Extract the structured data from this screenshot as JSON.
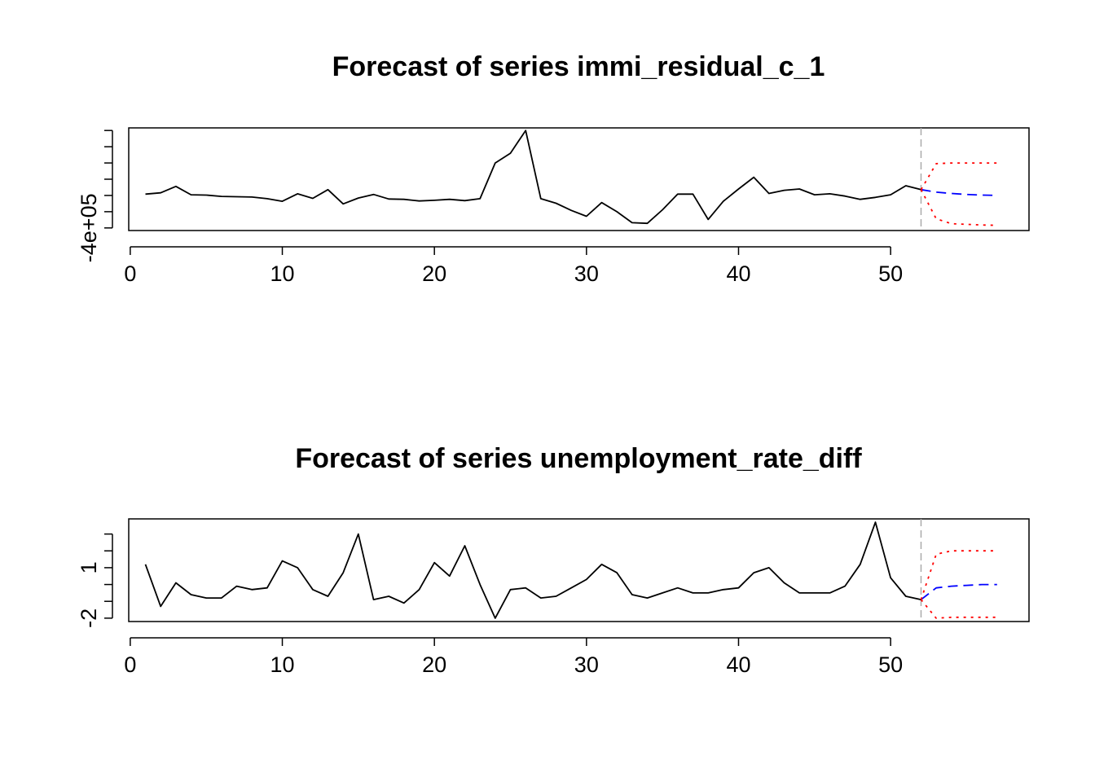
{
  "chart_data": [
    {
      "type": "line",
      "title": "Forecast of series immi_residual_c_1",
      "xlabel": "",
      "ylabel": "",
      "xlim": [
        -0.1,
        59.1
      ],
      "ylim": [
        -440000,
        1140000
      ],
      "x_ticks": [
        0,
        10,
        20,
        30,
        40,
        50
      ],
      "x_tick_labels": [
        "0",
        "10",
        "20",
        "30",
        "40",
        "50"
      ],
      "y_ticks": [
        -400000,
        -150000,
        100000,
        350000,
        600000,
        850000,
        1100000
      ],
      "y_tick_labels": [
        "-4e+05",
        "",
        "",
        "",
        "",
        "",
        ""
      ],
      "forecast_origin": 52,
      "series": [
        {
          "role": "observed",
          "color": "#000000",
          "style": "solid",
          "x": [
            1,
            2,
            3,
            4,
            5,
            6,
            7,
            8,
            9,
            10,
            11,
            12,
            13,
            14,
            15,
            16,
            17,
            18,
            19,
            20,
            21,
            22,
            23,
            24,
            25,
            26,
            27,
            28,
            29,
            30,
            31,
            32,
            33,
            34,
            35,
            36,
            37,
            38,
            39,
            40,
            41,
            42,
            43,
            44,
            45,
            46,
            47,
            48,
            49,
            50,
            51,
            52
          ],
          "values": [
            120000,
            140000,
            240000,
            110000,
            105000,
            85000,
            80000,
            75000,
            50000,
            10000,
            125000,
            55000,
            190000,
            -30000,
            60000,
            115000,
            45000,
            40000,
            15000,
            25000,
            40000,
            20000,
            50000,
            600000,
            750000,
            1100000,
            50000,
            -20000,
            -130000,
            -220000,
            -10000,
            -150000,
            -320000,
            -330000,
            -120000,
            120000,
            120000,
            -270000,
            10000,
            200000,
            380000,
            130000,
            180000,
            200000,
            110000,
            125000,
            90000,
            40000,
            70000,
            110000,
            250000,
            190000
          ]
        },
        {
          "role": "forecast",
          "color": "#0000ff",
          "style": "dashed",
          "x": [
            52,
            53,
            54,
            55,
            56,
            57
          ],
          "values": [
            190000,
            150000,
            130000,
            115000,
            105000,
            100000
          ]
        },
        {
          "role": "upper-bound",
          "color": "#ff0000",
          "style": "dotted",
          "x": [
            52,
            53,
            54,
            55,
            56,
            57
          ],
          "values": [
            190000,
            590000,
            600000,
            600000,
            600000,
            600000
          ]
        },
        {
          "role": "lower-bound",
          "color": "#ff0000",
          "style": "dotted",
          "x": [
            52,
            53,
            54,
            55,
            56,
            57
          ],
          "values": [
            190000,
            -260000,
            -335000,
            -345000,
            -355000,
            -360000
          ]
        }
      ]
    },
    {
      "type": "line",
      "title": "Forecast of series unemployment_rate_diff",
      "xlabel": "",
      "ylabel": "",
      "xlim": [
        -0.1,
        59.1
      ],
      "ylim": [
        -2.2,
        3.9
      ],
      "x_ticks": [
        0,
        10,
        20,
        30,
        40,
        50
      ],
      "x_tick_labels": [
        "0",
        "10",
        "20",
        "30",
        "40",
        "50"
      ],
      "y_ticks": [
        -2,
        -1,
        0,
        1,
        2,
        3
      ],
      "y_tick_labels": [
        "-2",
        "",
        "",
        "1",
        "",
        ""
      ],
      "forecast_origin": 52,
      "series": [
        {
          "role": "observed",
          "color": "#000000",
          "style": "solid",
          "x": [
            1,
            2,
            3,
            4,
            5,
            6,
            7,
            8,
            9,
            10,
            11,
            12,
            13,
            14,
            15,
            16,
            17,
            18,
            19,
            20,
            21,
            22,
            23,
            24,
            25,
            26,
            27,
            28,
            29,
            30,
            31,
            32,
            33,
            34,
            35,
            36,
            37,
            38,
            39,
            40,
            41,
            42,
            43,
            44,
            45,
            46,
            47,
            48,
            49,
            50,
            51,
            52
          ],
          "values": [
            1.2,
            -1.3,
            0.1,
            -0.6,
            -0.8,
            -0.8,
            -0.1,
            -0.3,
            -0.2,
            1.4,
            1.0,
            -0.3,
            -0.7,
            0.7,
            3.0,
            -0.9,
            -0.7,
            -1.1,
            -0.3,
            1.3,
            0.5,
            2.3,
            0.0,
            -2.0,
            -0.3,
            -0.2,
            -0.8,
            -0.7,
            -0.2,
            0.3,
            1.2,
            0.7,
            -0.6,
            -0.8,
            -0.5,
            -0.2,
            -0.5,
            -0.5,
            -0.3,
            -0.2,
            0.7,
            1.0,
            0.1,
            -0.5,
            -0.5,
            -0.5,
            -0.1,
            1.2,
            3.7,
            0.4,
            -0.7,
            -0.9
          ]
        },
        {
          "role": "forecast",
          "color": "#0000ff",
          "style": "dashed",
          "x": [
            52,
            53,
            54,
            55,
            56,
            57
          ],
          "values": [
            -0.9,
            -0.2,
            -0.1,
            -0.05,
            0.0,
            0.0
          ]
        },
        {
          "role": "upper-bound",
          "color": "#ff0000",
          "style": "dotted",
          "x": [
            52,
            53,
            54,
            55,
            56,
            57
          ],
          "values": [
            -0.9,
            1.8,
            2.0,
            2.0,
            2.0,
            2.0
          ]
        },
        {
          "role": "lower-bound",
          "color": "#ff0000",
          "style": "dotted",
          "x": [
            52,
            53,
            54,
            55,
            56,
            57
          ],
          "values": [
            -0.9,
            -2.0,
            -1.95,
            -1.95,
            -1.95,
            -1.95
          ]
        }
      ]
    }
  ]
}
